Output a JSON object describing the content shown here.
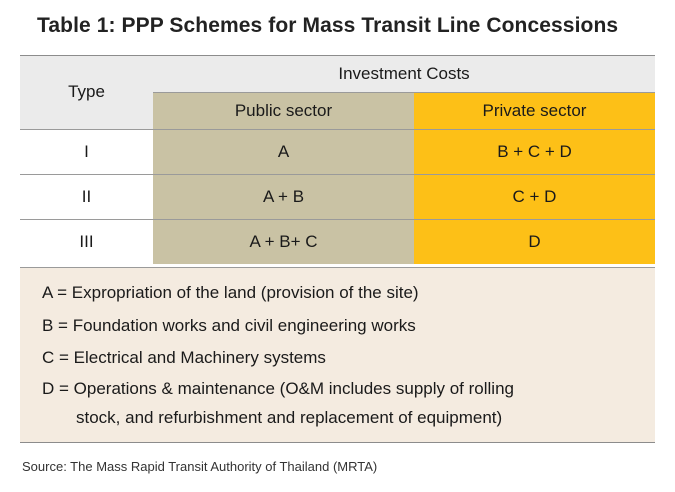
{
  "title": "Table 1: PPP Schemes for Mass Transit Line Concessions",
  "table": {
    "type_header": "Type",
    "group_header": "Investment Costs",
    "public_header": "Public sector",
    "private_header": "Private sector",
    "rows": [
      {
        "type": "I",
        "public": "A",
        "private": "B + C + D"
      },
      {
        "type": "II",
        "public": "A + B",
        "private": "C + D"
      },
      {
        "type": "III",
        "public": "A + B+ C",
        "private": "D"
      }
    ]
  },
  "legend": {
    "lines": [
      "A = Expropriation of the land (provision of the site)",
      "B = Foundation  works and civil engineering works",
      "C = Electrical and Machinery systems",
      "D = Operations & maintenance (O&M includes supply of rolling",
      "stock, and refurbishment and replacement of equipment)"
    ]
  },
  "source": "Source: The Mass Rapid Transit Authority of Thailand (MRTA)",
  "colors": {
    "header_bg": "#ebebeb",
    "public_bg": "#c9c2a4",
    "private_bg": "#fdc017",
    "legend_bg": "#f4ebe0"
  }
}
